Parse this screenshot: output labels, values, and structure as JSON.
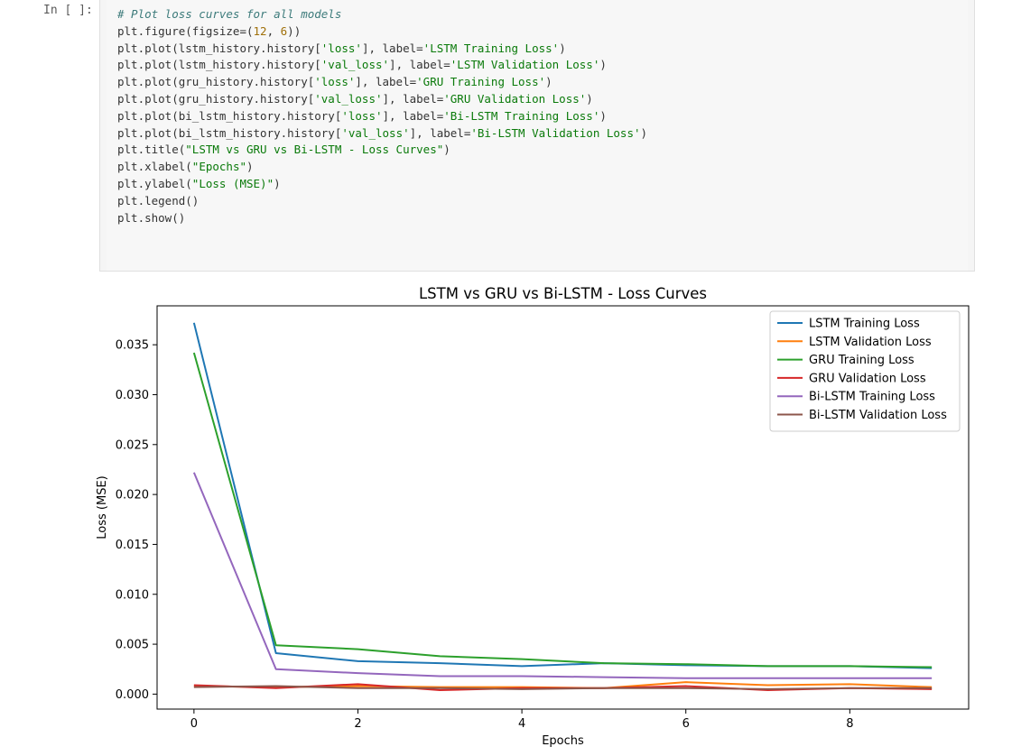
{
  "cell": {
    "prompt": "In [ ]:",
    "code_lines": [
      [
        {
          "t": "comment",
          "s": "# Plot loss curves for all models"
        }
      ],
      [
        {
          "t": "plain",
          "s": "plt.figure(figsize=("
        },
        {
          "t": "number",
          "s": "12"
        },
        {
          "t": "plain",
          "s": ", "
        },
        {
          "t": "number",
          "s": "6"
        },
        {
          "t": "plain",
          "s": "))"
        }
      ],
      [
        {
          "t": "plain",
          "s": "plt.plot(lstm_history.history["
        },
        {
          "t": "string",
          "s": "'loss'"
        },
        {
          "t": "plain",
          "s": "], label="
        },
        {
          "t": "string",
          "s": "'LSTM Training Loss'"
        },
        {
          "t": "plain",
          "s": ")"
        }
      ],
      [
        {
          "t": "plain",
          "s": "plt.plot(lstm_history.history["
        },
        {
          "t": "string",
          "s": "'val_loss'"
        },
        {
          "t": "plain",
          "s": "], label="
        },
        {
          "t": "string",
          "s": "'LSTM Validation Loss'"
        },
        {
          "t": "plain",
          "s": ")"
        }
      ],
      [
        {
          "t": "plain",
          "s": "plt.plot(gru_history.history["
        },
        {
          "t": "string",
          "s": "'loss'"
        },
        {
          "t": "plain",
          "s": "], label="
        },
        {
          "t": "string",
          "s": "'GRU Training Loss'"
        },
        {
          "t": "plain",
          "s": ")"
        }
      ],
      [
        {
          "t": "plain",
          "s": "plt.plot(gru_history.history["
        },
        {
          "t": "string",
          "s": "'val_loss'"
        },
        {
          "t": "plain",
          "s": "], label="
        },
        {
          "t": "string",
          "s": "'GRU Validation Loss'"
        },
        {
          "t": "plain",
          "s": ")"
        }
      ],
      [
        {
          "t": "plain",
          "s": "plt.plot(bi_lstm_history.history["
        },
        {
          "t": "string",
          "s": "'loss'"
        },
        {
          "t": "plain",
          "s": "], label="
        },
        {
          "t": "string",
          "s": "'Bi-LSTM Training Loss'"
        },
        {
          "t": "plain",
          "s": ")"
        }
      ],
      [
        {
          "t": "plain",
          "s": "plt.plot(bi_lstm_history.history["
        },
        {
          "t": "string",
          "s": "'val_loss'"
        },
        {
          "t": "plain",
          "s": "], label="
        },
        {
          "t": "string",
          "s": "'Bi-LSTM Validation Loss'"
        },
        {
          "t": "plain",
          "s": ")"
        }
      ],
      [
        {
          "t": "plain",
          "s": "plt.title("
        },
        {
          "t": "string",
          "s": "\"LSTM vs GRU vs Bi-LSTM - Loss Curves\""
        },
        {
          "t": "plain",
          "s": ")"
        }
      ],
      [
        {
          "t": "plain",
          "s": "plt.xlabel("
        },
        {
          "t": "string",
          "s": "\"Epochs\""
        },
        {
          "t": "plain",
          "s": ")"
        }
      ],
      [
        {
          "t": "plain",
          "s": "plt.ylabel("
        },
        {
          "t": "string",
          "s": "\"Loss (MSE)\""
        },
        {
          "t": "plain",
          "s": ")"
        }
      ],
      [
        {
          "t": "plain",
          "s": "plt.legend()"
        }
      ],
      [
        {
          "t": "plain",
          "s": "plt.show()"
        }
      ]
    ]
  },
  "chart_data": {
    "type": "line",
    "title": "LSTM vs GRU vs Bi-LSTM - Loss Curves",
    "xlabel": "Epochs",
    "ylabel": "Loss (MSE)",
    "xlim": [
      -0.45,
      9.45
    ],
    "ylim": [
      -0.0015,
      0.0389
    ],
    "xticks": [
      0,
      2,
      4,
      6,
      8
    ],
    "yticks": [
      0.0,
      0.005,
      0.01,
      0.015,
      0.02,
      0.025,
      0.03,
      0.035
    ],
    "ytick_labels": [
      "0.000",
      "0.005",
      "0.010",
      "0.015",
      "0.020",
      "0.025",
      "0.030",
      "0.035"
    ],
    "grid": false,
    "legend_position": "top-right",
    "x": [
      0,
      1,
      2,
      3,
      4,
      5,
      6,
      7,
      8,
      9
    ],
    "series": [
      {
        "name": "LSTM Training Loss",
        "color": "#1f77b4",
        "values": [
          0.0372,
          0.0041,
          0.0033,
          0.0031,
          0.0028,
          0.0031,
          0.0029,
          0.0028,
          0.0028,
          0.0026
        ]
      },
      {
        "name": "LSTM Validation Loss",
        "color": "#ff7f0e",
        "values": [
          0.0008,
          0.0007,
          0.0008,
          0.0007,
          0.0007,
          0.0006,
          0.0012,
          0.0009,
          0.001,
          0.0007
        ]
      },
      {
        "name": "GRU Training Loss",
        "color": "#2ca02c",
        "values": [
          0.0342,
          0.0049,
          0.0045,
          0.0038,
          0.0035,
          0.0031,
          0.003,
          0.0028,
          0.0028,
          0.0027
        ]
      },
      {
        "name": "GRU Validation Loss",
        "color": "#d62728",
        "values": [
          0.0009,
          0.0006,
          0.001,
          0.0004,
          0.0006,
          0.0006,
          0.0008,
          0.0004,
          0.0006,
          0.0005
        ]
      },
      {
        "name": "Bi-LSTM Training Loss",
        "color": "#9467bd",
        "values": [
          0.0222,
          0.0025,
          0.0021,
          0.0018,
          0.0018,
          0.0017,
          0.0016,
          0.0016,
          0.0016,
          0.0016
        ]
      },
      {
        "name": "Bi-LSTM Validation Loss",
        "color": "#8c564b",
        "values": [
          0.0007,
          0.0008,
          0.0006,
          0.0006,
          0.0005,
          0.0006,
          0.0006,
          0.0005,
          0.0006,
          0.0006
        ]
      }
    ]
  }
}
